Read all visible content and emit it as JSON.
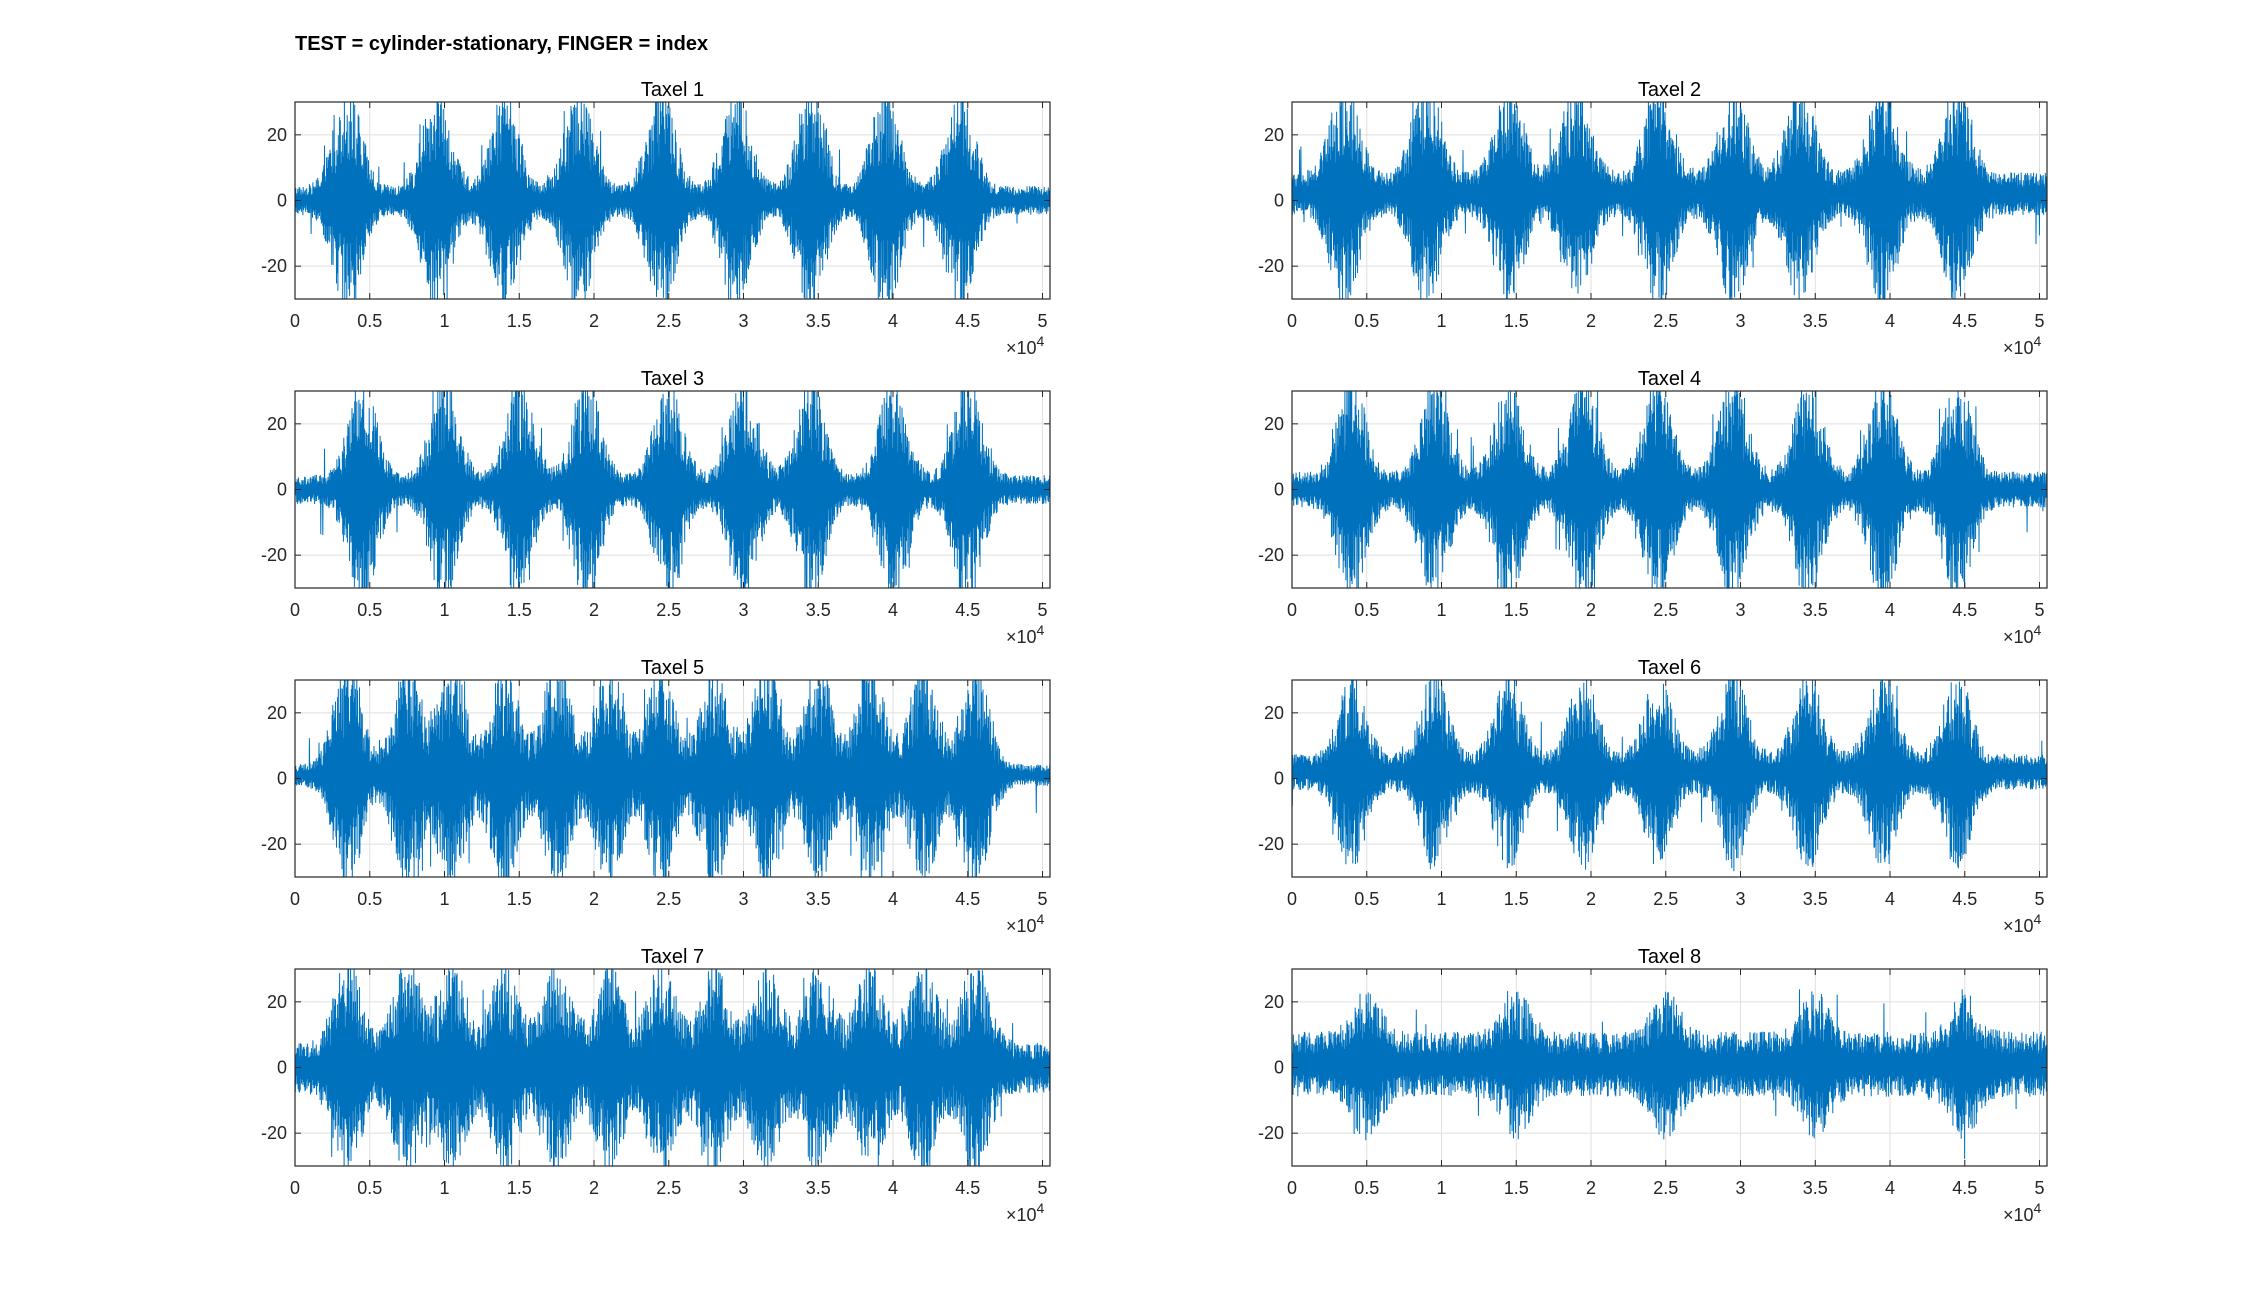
{
  "figure": {
    "title": "TEST = cylinder-stationary, FINGER = index"
  },
  "chart_data": {
    "type": "line",
    "layout": "4x2 grid of subplots",
    "xlim": [
      0,
      50500
    ],
    "ylim": [
      -30,
      30
    ],
    "xticks": [
      0,
      5000,
      10000,
      15000,
      20000,
      25000,
      30000,
      35000,
      40000,
      45000,
      50000
    ],
    "xtick_labels": [
      "0",
      "0.5",
      "1",
      "1.5",
      "2",
      "2.5",
      "3",
      "3.5",
      "4",
      "4.5",
      "5"
    ],
    "x_exponent_label": "×10",
    "x_exponent_power": "4",
    "yticks": [
      -20,
      0,
      20
    ],
    "ytick_labels": [
      "-20",
      "0",
      "20"
    ],
    "grid": true,
    "series_color": "#0072bd",
    "subplots": [
      {
        "title": "Taxel 1",
        "base_amplitude": 4,
        "offset": 0,
        "bursts": [
          3500,
          9500,
          14000,
          19000,
          24500,
          29500,
          34500,
          39500,
          44500
        ],
        "burst_peak": 30
      },
      {
        "title": "Taxel 2",
        "base_amplitude": 6,
        "offset": 2,
        "bursts": [
          3500,
          9000,
          14500,
          19000,
          24500,
          29500,
          34000,
          39500,
          44500
        ],
        "burst_peak": 30
      },
      {
        "title": "Taxel 3",
        "base_amplitude": 4,
        "offset": 0,
        "bursts": [
          4500,
          10000,
          15000,
          19500,
          25000,
          30000,
          34500,
          40000,
          45000
        ],
        "burst_peak": 30
      },
      {
        "title": "Taxel 4",
        "base_amplitude": 5,
        "offset": 0,
        "bursts": [
          4000,
          9500,
          14500,
          19500,
          24500,
          29500,
          34500,
          39500,
          44500
        ],
        "burst_peak": 30
      },
      {
        "title": "Taxel 5",
        "base_amplitude": 3,
        "offset": 1,
        "bursts": [
          3500,
          7500,
          10500,
          14000,
          17500,
          21000,
          24500,
          28000,
          31500,
          35000,
          38500,
          42000,
          45500
        ],
        "burst_peak": 30
      },
      {
        "title": "Taxel 6",
        "base_amplitude": 5,
        "offset": 2,
        "bursts": [
          4000,
          9500,
          14500,
          19500,
          24500,
          29500,
          34500,
          39500,
          44500
        ],
        "burst_peak": 26
      },
      {
        "title": "Taxel 7",
        "base_amplitude": 7,
        "offset": 0,
        "bursts": [
          3500,
          7500,
          10500,
          14000,
          17500,
          21000,
          24500,
          28000,
          31500,
          35000,
          38500,
          42000,
          45500
        ],
        "burst_peak": 28
      },
      {
        "title": "Taxel 8",
        "base_amplitude": 9,
        "offset": 1,
        "bursts": [
          5000,
          15000,
          25000,
          35000,
          45000
        ],
        "burst_peak": 20
      }
    ]
  }
}
